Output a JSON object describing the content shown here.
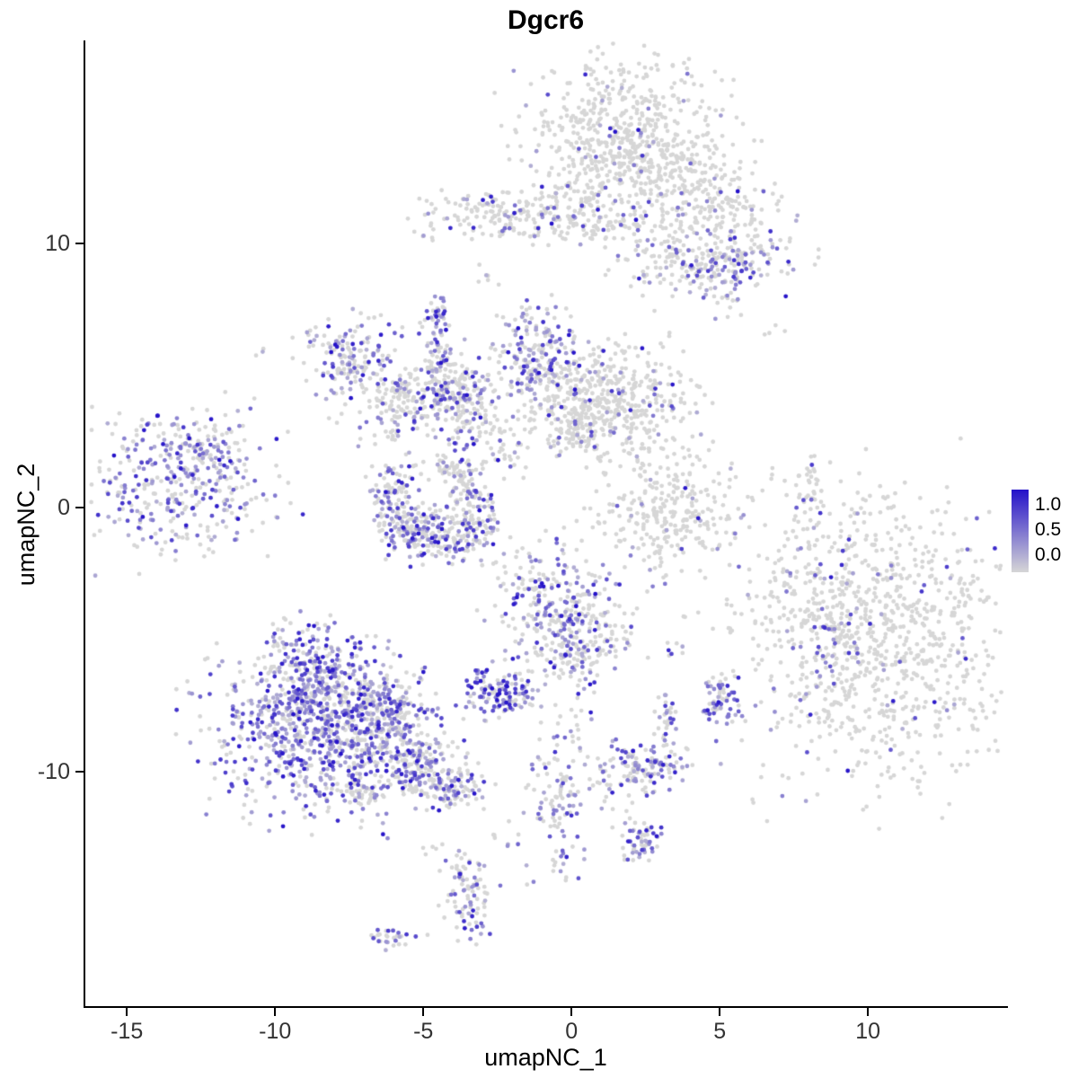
{
  "chart_data": {
    "type": "scatter",
    "title": "Dgcr6",
    "xlabel": "umapNC_1",
    "ylabel": "umapNC_2",
    "xlim": [
      -16.4,
      14.6
    ],
    "ylim": [
      -18.9,
      17.7
    ],
    "x_tick_values": [
      -15,
      -10,
      -5,
      0,
      5,
      10
    ],
    "x_tick_labels": [
      "-15",
      "-10",
      "-5",
      "0",
      "5",
      "10"
    ],
    "y_tick_values": [
      -10,
      0,
      10
    ],
    "y_tick_labels": [
      "-10",
      "0",
      "10"
    ],
    "grid": false,
    "legend": {
      "position": "right",
      "labels": [
        "1.0",
        "0.5",
        "0.0"
      ],
      "values": [
        1.0,
        0.5,
        0.0
      ]
    },
    "colors": {
      "low": "#d6d6d6",
      "high": "#2411c9",
      "background": "#ffffff"
    },
    "point_radius_px": 2.4,
    "description": "UMAP feature plot of Dgcr6 expression; points are cells colored by expression (grey = 0, blue = high). Clusters give center (x,y in umap coords), gaussian spread (rx,ry, rotation), cell count n, and fraction of expressing cells frac.",
    "clusters": [
      {
        "x": 1.9,
        "y": 13.9,
        "rx": 1.6,
        "ry": 1.4,
        "rot": 0,
        "n": 650,
        "frac": 0.07
      },
      {
        "x": 4.5,
        "y": 11.9,
        "rx": 1.3,
        "ry": 0.8,
        "rot": -0.5,
        "n": 200,
        "frac": 0.08
      },
      {
        "x": -2.0,
        "y": 11.1,
        "rx": 1.6,
        "ry": 0.45,
        "rot": 0,
        "n": 200,
        "frac": 0.15
      },
      {
        "x": 0.9,
        "y": 10.8,
        "rx": 0.8,
        "ry": 0.4,
        "rot": 0,
        "n": 70,
        "frac": 0.12
      },
      {
        "x": 4.5,
        "y": 9.6,
        "rx": 1.5,
        "ry": 0.8,
        "rot": 0,
        "n": 220,
        "frac": 0.18
      },
      {
        "x": 5.6,
        "y": 9.2,
        "rx": 0.45,
        "ry": 0.4,
        "rot": 0,
        "n": 45,
        "frac": 0.7
      },
      {
        "x": 4.2,
        "y": 8.9,
        "rx": 0.3,
        "ry": 0.3,
        "rot": 0,
        "n": 20,
        "frac": 0.6
      },
      {
        "x": 5.2,
        "y": 7.9,
        "rx": 0.4,
        "ry": 0.4,
        "rot": 0,
        "n": 15,
        "frac": 0.2
      },
      {
        "x": 6.7,
        "y": 6.7,
        "rx": 0.2,
        "ry": 0.2,
        "rot": 0,
        "n": 4,
        "frac": 0.1
      },
      {
        "x": -7.4,
        "y": 5.6,
        "rx": 0.85,
        "ry": 0.8,
        "rot": 0,
        "n": 170,
        "frac": 0.45
      },
      {
        "x": -5.1,
        "y": 4.1,
        "rx": 1.15,
        "ry": 0.75,
        "rot": 0.3,
        "n": 220,
        "frac": 0.3
      },
      {
        "x": -4.5,
        "y": 6.6,
        "rx": 0.22,
        "ry": 0.95,
        "rot": 0,
        "n": 70,
        "frac": 0.55
      },
      {
        "x": -3.4,
        "y": 3.6,
        "rx": 0.5,
        "ry": 0.6,
        "rot": 0,
        "n": 90,
        "frac": 0.35
      },
      {
        "x": -4.0,
        "y": 4.9,
        "rx": 0.5,
        "ry": 0.5,
        "rot": 0,
        "n": 60,
        "frac": 0.25
      },
      {
        "x": -1.1,
        "y": 5.5,
        "rx": 0.65,
        "ry": 1.0,
        "rot": 0,
        "n": 200,
        "frac": 0.5
      },
      {
        "x": 1.1,
        "y": 4.1,
        "rx": 1.5,
        "ry": 0.95,
        "rot": 0,
        "n": 500,
        "frac": 0.1
      },
      {
        "x": 0.4,
        "y": 2.8,
        "rx": 0.6,
        "ry": 0.4,
        "rot": 0,
        "n": 60,
        "frac": 0.15
      },
      {
        "x": -2.4,
        "y": 2.3,
        "rx": 0.5,
        "ry": 0.7,
        "rot": 0.5,
        "n": 40,
        "frac": 0.25
      },
      {
        "x": -6.0,
        "y": 0.6,
        "rx": 0.5,
        "ry": 0.7,
        "rot": 0,
        "n": 90,
        "frac": 0.4
      },
      {
        "x": -5.5,
        "y": -0.8,
        "rx": 0.6,
        "ry": 0.5,
        "rot": 0,
        "n": 120,
        "frac": 0.45
      },
      {
        "x": -4.3,
        "y": -1.2,
        "rx": 0.7,
        "ry": 0.45,
        "rot": 0,
        "n": 130,
        "frac": 0.45
      },
      {
        "x": -3.3,
        "y": -0.4,
        "rx": 0.45,
        "ry": 0.55,
        "rot": 0,
        "n": 90,
        "frac": 0.4
      },
      {
        "x": -3.5,
        "y": 1.0,
        "rx": 0.3,
        "ry": 0.5,
        "rot": 0,
        "n": 50,
        "frac": 0.35
      },
      {
        "x": -4.1,
        "y": 1.6,
        "rx": 0.3,
        "ry": 0.4,
        "rot": 0,
        "n": 30,
        "frac": 0.3
      },
      {
        "x": -13.2,
        "y": 1.0,
        "rx": 1.5,
        "ry": 1.3,
        "rot": 0.2,
        "n": 380,
        "frac": 0.55
      },
      {
        "x": -12.3,
        "y": 2.3,
        "rx": 0.5,
        "ry": 0.4,
        "rot": 0,
        "n": 40,
        "frac": 0.4
      },
      {
        "x": -10.5,
        "y": 5.9,
        "rx": 0.15,
        "ry": 0.15,
        "rot": 0,
        "n": 3,
        "frac": 0.3
      },
      {
        "x": 3.3,
        "y": -0.1,
        "rx": 1.2,
        "ry": 1.0,
        "rot": 0,
        "n": 280,
        "frac": 0.05
      },
      {
        "x": 8.0,
        "y": 0.1,
        "rx": 0.25,
        "ry": 0.85,
        "rot": 0,
        "n": 45,
        "frac": 0.06
      },
      {
        "x": 10.5,
        "y": -4.8,
        "rx": 2.6,
        "ry": 2.7,
        "rot": 0,
        "n": 1000,
        "frac": 0.06
      },
      {
        "x": 8.8,
        "y": -4.8,
        "rx": 0.7,
        "ry": 1.4,
        "rot": 0,
        "n": 90,
        "frac": 0.45
      },
      {
        "x": -0.4,
        "y": -3.9,
        "rx": 1.05,
        "ry": 1.25,
        "rot": 0,
        "n": 300,
        "frac": 0.45
      },
      {
        "x": 0.1,
        "y": -5.7,
        "rx": 0.5,
        "ry": 0.5,
        "rot": 0,
        "n": 60,
        "frac": 0.3
      },
      {
        "x": 1.3,
        "y": -4.7,
        "rx": 0.5,
        "ry": 0.5,
        "rot": 0,
        "n": 40,
        "frac": 0.2
      },
      {
        "x": -2.5,
        "y": -7.0,
        "rx": 0.55,
        "ry": 0.45,
        "rot": 0,
        "n": 110,
        "frac": 0.75
      },
      {
        "x": -1.6,
        "y": -7.0,
        "rx": 0.35,
        "ry": 0.3,
        "rot": 0,
        "n": 25,
        "frac": 0.5
      },
      {
        "x": -8.6,
        "y": -8.4,
        "rx": 1.7,
        "ry": 1.5,
        "rot": 0,
        "n": 850,
        "frac": 0.65
      },
      {
        "x": -8.8,
        "y": -6.0,
        "rx": 0.8,
        "ry": 0.9,
        "rot": 0,
        "n": 180,
        "frac": 0.6
      },
      {
        "x": -6.6,
        "y": -7.7,
        "rx": 0.8,
        "ry": 0.8,
        "rot": 0,
        "n": 200,
        "frac": 0.5
      },
      {
        "x": -5.3,
        "y": -9.7,
        "rx": 1.1,
        "ry": 0.6,
        "rot": -0.4,
        "n": 220,
        "frac": 0.45
      },
      {
        "x": -4.0,
        "y": -10.7,
        "rx": 0.5,
        "ry": 0.4,
        "rot": 0,
        "n": 60,
        "frac": 0.35
      },
      {
        "x": -7.2,
        "y": -10.8,
        "rx": 0.5,
        "ry": 0.4,
        "rot": 0,
        "n": 40,
        "frac": 0.3
      },
      {
        "x": 5.1,
        "y": -7.5,
        "rx": 0.35,
        "ry": 0.5,
        "rot": 0,
        "n": 60,
        "frac": 0.8
      },
      {
        "x": 2.4,
        "y": -9.8,
        "rx": 0.85,
        "ry": 0.5,
        "rot": 0,
        "n": 140,
        "frac": 0.55
      },
      {
        "x": 3.2,
        "y": -7.9,
        "rx": 0.15,
        "ry": 0.5,
        "rot": 0,
        "n": 30,
        "frac": 0.5
      },
      {
        "x": -0.5,
        "y": -11.1,
        "rx": 0.45,
        "ry": 1.4,
        "rot": 0,
        "n": 110,
        "frac": 0.5
      },
      {
        "x": 2.4,
        "y": -12.7,
        "rx": 0.4,
        "ry": 0.4,
        "rot": 0,
        "n": 55,
        "frac": 0.6
      },
      {
        "x": -3.5,
        "y": -14.9,
        "rx": 0.4,
        "ry": 0.85,
        "rot": 0,
        "n": 80,
        "frac": 0.5
      },
      {
        "x": -3.6,
        "y": -13.8,
        "rx": 0.2,
        "ry": 0.4,
        "rot": 0,
        "n": 15,
        "frac": 0.3
      },
      {
        "x": -6.0,
        "y": -16.3,
        "rx": 0.45,
        "ry": 0.2,
        "rot": 0,
        "n": 30,
        "frac": 0.5
      },
      {
        "x": -2.8,
        "y": 8.6,
        "rx": 0.25,
        "ry": 0.25,
        "rot": 0,
        "n": 6,
        "frac": 0.2
      },
      {
        "x": 5.3,
        "y": 7.7,
        "rx": 0.15,
        "ry": 0.15,
        "rot": 0,
        "n": 3,
        "frac": 0.1
      },
      {
        "x": 1.9,
        "y": 1.8,
        "rx": 0.5,
        "ry": 0.6,
        "rot": 0,
        "n": 12,
        "frac": 0.1
      },
      {
        "x": 2.9,
        "y": -2.6,
        "rx": 0.3,
        "ry": 0.3,
        "rot": 0,
        "n": 8,
        "frac": 0.3
      },
      {
        "x": 3.7,
        "y": -5.3,
        "rx": 0.3,
        "ry": 0.3,
        "rot": 0,
        "n": 6,
        "frac": 0.3
      },
      {
        "x": -1.8,
        "y": -2.4,
        "rx": 0.4,
        "ry": 0.4,
        "rot": 0,
        "n": 10,
        "frac": 0.3
      },
      {
        "x": 0.1,
        "y": -8.1,
        "rx": 0.4,
        "ry": 0.5,
        "rot": 0,
        "n": 15,
        "frac": 0.3
      },
      {
        "x": 1.6,
        "y": -11.5,
        "rx": 0.3,
        "ry": 0.3,
        "rot": 0,
        "n": 8,
        "frac": 0.3
      },
      {
        "x": -2.3,
        "y": -12.5,
        "rx": 0.3,
        "ry": 0.3,
        "rot": 0,
        "n": 8,
        "frac": 0.3
      },
      {
        "x": -4.7,
        "y": -13.2,
        "rx": 0.25,
        "ry": 0.25,
        "rot": 0,
        "n": 6,
        "frac": 0.2
      },
      {
        "x": 7.0,
        "y": -3.3,
        "rx": 0.3,
        "ry": 0.4,
        "rot": 0,
        "n": 5,
        "frac": 0.2
      },
      {
        "x": 9.2,
        "y": -1.3,
        "rx": 0.3,
        "ry": 0.3,
        "rot": 0,
        "n": 6,
        "frac": 0.1
      }
    ]
  }
}
